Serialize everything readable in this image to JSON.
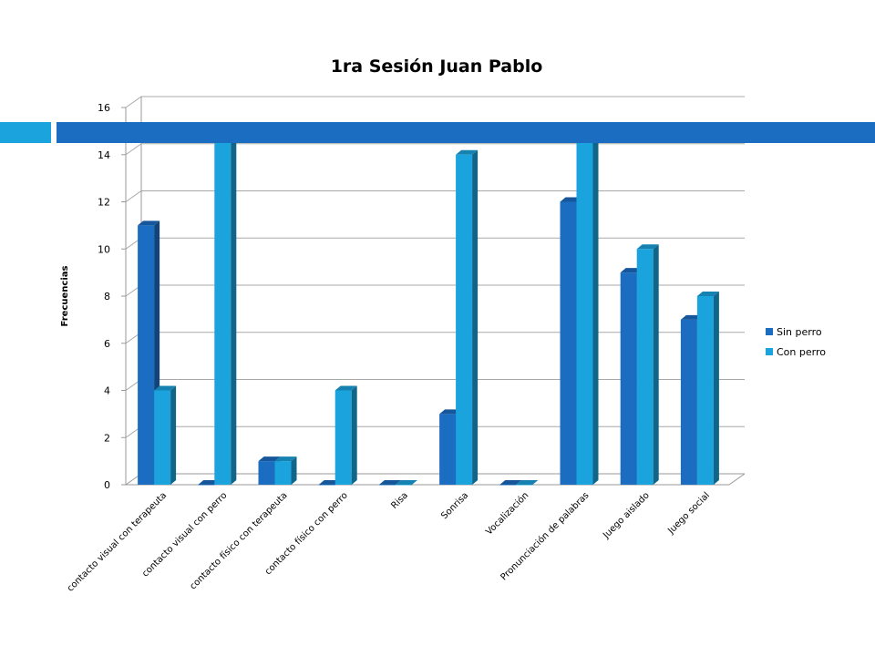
{
  "chart_data": {
    "type": "bar",
    "title": "1ra Sesión Juan Pablo",
    "ylabel": "Frecuencias",
    "xlabel": "",
    "ylim": [
      0,
      16
    ],
    "yticks": [
      0,
      2,
      4,
      6,
      8,
      10,
      12,
      14,
      16
    ],
    "grid": true,
    "legend_position": "right",
    "categories": [
      "contacto visual con terapeuta",
      "contacto visual con perro",
      "contacto físico con terapeuta",
      "contacto físico con perro",
      "Risa",
      "Sonrisa",
      "Vocalización",
      "Pronunciación de palabras",
      "Juego aislado",
      "Juego social"
    ],
    "series": [
      {
        "name": "Sin perro",
        "color": "#1b6dc2",
        "values": [
          11,
          0,
          1,
          0,
          0,
          3,
          0,
          12,
          9,
          7
        ]
      },
      {
        "name": "Con perro",
        "color": "#1aa3dd",
        "values": [
          4,
          15,
          1,
          4,
          0,
          14,
          0,
          15,
          10,
          8
        ]
      }
    ]
  },
  "decoration": {
    "band_color": "#1b6dc2",
    "accent_color": "#1aa3dd"
  }
}
